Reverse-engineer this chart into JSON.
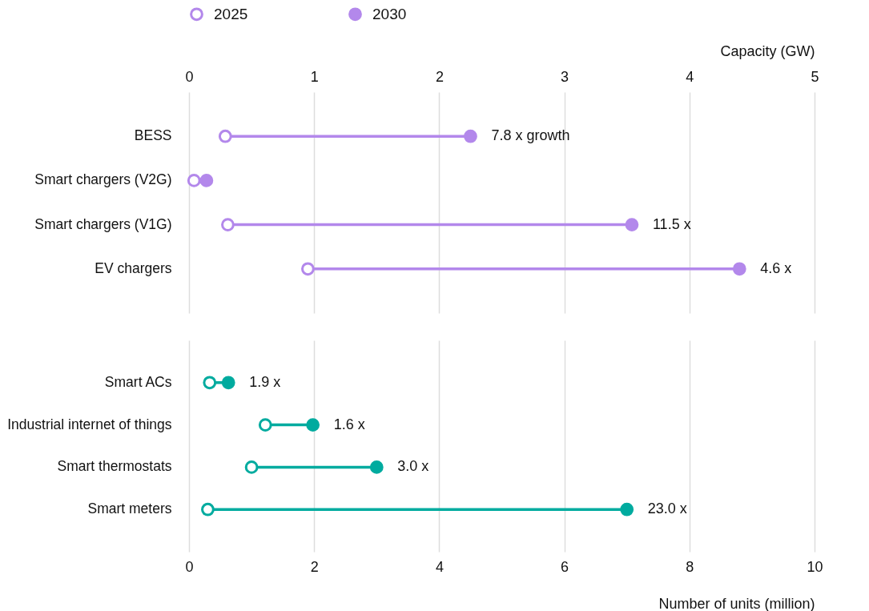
{
  "chart_data": [
    {
      "type": "scatter",
      "orientation": "horizontal",
      "categories": [
        "BESS",
        "Smart chargers (V2G)",
        "Smart chargers (V1G)",
        "EV chargers"
      ],
      "series": [
        {
          "name": "2025",
          "color": "#b388eb",
          "values": [
            0.29,
            0.04,
            0.31,
            0.95
          ]
        },
        {
          "name": "2030",
          "color": "#b388eb",
          "values": [
            2.25,
            0.14,
            3.54,
            4.4
          ]
        }
      ],
      "xlabel": "Capacity (GW)",
      "xlim": [
        0,
        5
      ],
      "xticks": [
        0,
        1,
        2,
        3,
        4,
        5
      ],
      "grid": "x",
      "legend": "top",
      "marker": "circle",
      "annotations": [
        {
          "text": "7.8 x growth",
          "x": 2.25,
          "y": "BESS"
        },
        {
          "text": "11.5 x",
          "x": 3.54,
          "y": "Smart chargers (V1G)"
        },
        {
          "text": "4.6 x",
          "x": 4.4,
          "y": "EV chargers"
        }
      ]
    },
    {
      "type": "scatter",
      "orientation": "horizontal",
      "categories": [
        "Smart ACs",
        "Industrial internet of things",
        "Smart thermostats",
        "Smart meters"
      ],
      "series": [
        {
          "color": "#00ab9f",
          "values": [
            0.33,
            1.22,
            1.0,
            0.3
          ]
        },
        {
          "color": "#00ab9f",
          "values": [
            0.63,
            1.98,
            3.0,
            7.0
          ]
        }
      ],
      "xlabel": "Number of units (million)",
      "xlim": [
        0,
        10
      ],
      "xticks": [
        0,
        2,
        4,
        6,
        8,
        10
      ],
      "grid": "x",
      "marker": "circle",
      "annotations": [
        {
          "text": "1.9 x",
          "x": 0.63,
          "y": "Smart ACs"
        },
        {
          "text": "1.6 x",
          "x": 1.98,
          "y": "Industrial internet of things"
        },
        {
          "text": "3.0 x",
          "x": 3.0,
          "y": "Smart thermostats"
        },
        {
          "text": "23.0 x",
          "x": 7.0,
          "y": "Smart meters"
        }
      ]
    }
  ]
}
